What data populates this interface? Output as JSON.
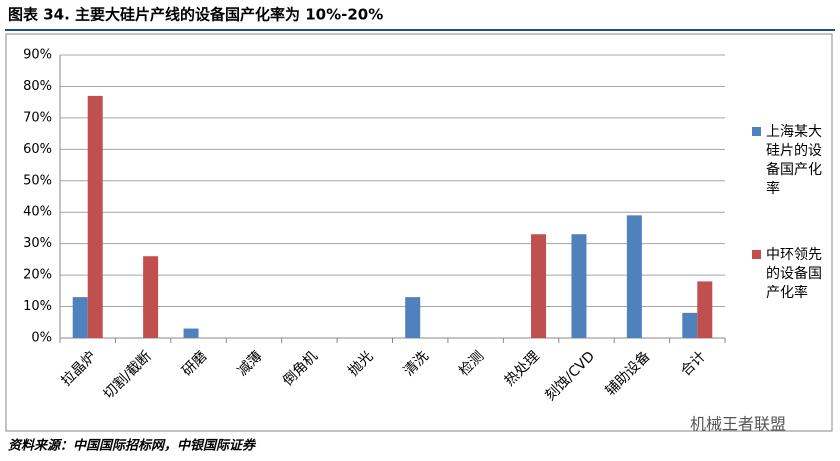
{
  "chart_data": {
    "type": "bar",
    "title": "图表 34. 主要大硅片产线的设备国产化率为 10%-20%",
    "source": "资料来源：中国国际招标网，中银国际证券",
    "watermark": "机械王者联盟",
    "categories": [
      "拉晶炉",
      "切割/截断",
      "研磨",
      "减薄",
      "倒角机",
      "抛光",
      "清洗",
      "检测",
      "热处理",
      "刻蚀/CVD",
      "辅助设备",
      "合计"
    ],
    "series": [
      {
        "name": "上海某大硅片的设备国产化率",
        "color": "#4f81bd",
        "values": [
          13,
          0,
          3,
          0,
          0,
          0,
          13,
          0,
          0,
          33,
          39,
          8
        ]
      },
      {
        "name": "中环领先的设备国产化率",
        "color": "#c0504d",
        "values": [
          77,
          26,
          0,
          0,
          0,
          0,
          0,
          0,
          33,
          0,
          0,
          18
        ]
      }
    ],
    "ylim": [
      0,
      90
    ],
    "yticks": [
      {
        "value": 0,
        "label": "0%"
      },
      {
        "value": 10,
        "label": "10%"
      },
      {
        "value": 20,
        "label": "20%"
      },
      {
        "value": 30,
        "label": "30%"
      },
      {
        "value": 40,
        "label": "40%"
      },
      {
        "value": 50,
        "label": "50%"
      },
      {
        "value": 60,
        "label": "60%"
      },
      {
        "value": 70,
        "label": "70%"
      },
      {
        "value": 80,
        "label": "80%"
      },
      {
        "value": 90,
        "label": "90%"
      }
    ],
    "grid": true,
    "legend": "right"
  }
}
